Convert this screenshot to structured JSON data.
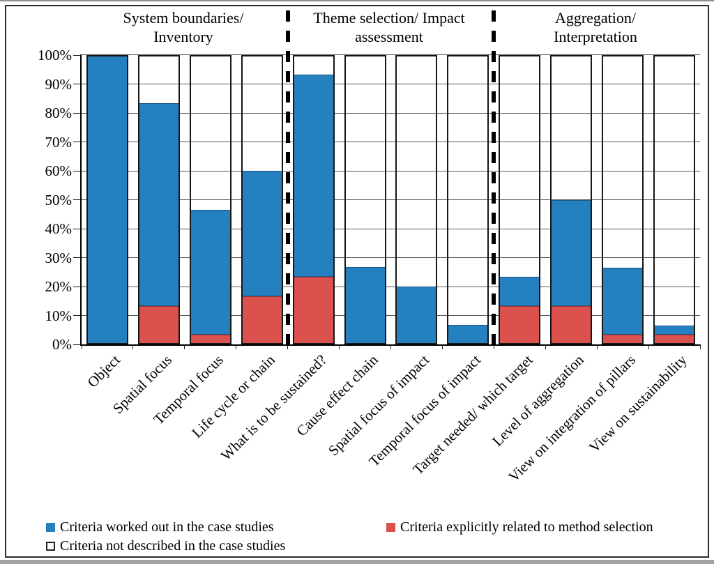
{
  "chart_data": {
    "type": "bar",
    "stacked": true,
    "title": "",
    "xlabel": "",
    "ylabel": "",
    "ylim": [
      0,
      100
    ],
    "grid": "horizontal",
    "legend_position": "bottom-left",
    "y_ticks": [
      "100%",
      "90%",
      "80%",
      "70%",
      "60%",
      "50%",
      "40%",
      "30%",
      "20%",
      "10%",
      "0%"
    ],
    "groups": [
      {
        "label_line1": "System boundaries/",
        "label_line2": "Inventory",
        "category_count": 4
      },
      {
        "label_line1": "Theme selection/ Impact",
        "label_line2": "assessment",
        "category_count": 4
      },
      {
        "label_line1": "Aggregation/",
        "label_line2": "Interpretation",
        "category_count": 4
      }
    ],
    "categories": [
      "Object",
      "Spatial focus",
      "Temporal focus",
      "Life cycle or chain",
      "What is to be sustained?",
      "Cause effect chain",
      "Spatial focus of impact",
      "Temporal focus of impact",
      "Target needed/ which target",
      "Level of aggregation",
      "View on integration of pillars",
      "View on sustainability"
    ],
    "series": [
      {
        "name": "Criteria explicitly related to method selection",
        "color": "#db514e",
        "values": [
          0,
          13.3,
          3.3,
          16.7,
          23.3,
          0,
          0,
          0,
          13.3,
          13.3,
          3.3,
          3.3
        ]
      },
      {
        "name": "Criteria worked out in the case studies",
        "color": "#2580c0",
        "values": [
          100,
          70,
          43.3,
          43.3,
          70,
          26.7,
          20,
          6.7,
          10,
          36.7,
          23.3,
          3.3
        ]
      },
      {
        "name": "Criteria not described in the case studies",
        "color": "#ffffff",
        "values": [
          0,
          16.7,
          53.3,
          40,
          6.7,
          73.3,
          80,
          93.3,
          76.7,
          50,
          73.3,
          93.3
        ]
      }
    ],
    "bar_totals_percent": [
      100,
      83.3,
      46.7,
      60,
      93.3,
      26.7,
      20,
      6.7,
      23.3,
      50,
      26.7,
      6.7
    ]
  }
}
